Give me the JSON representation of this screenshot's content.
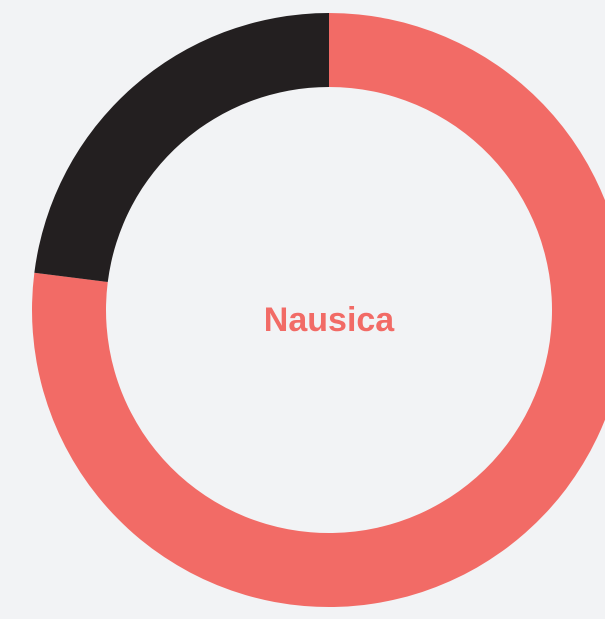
{
  "chart_data": {
    "type": "donut",
    "center_label": "Nausica",
    "values": [
      77,
      23
    ],
    "colors": [
      "#f26b66",
      "#231f20"
    ]
  }
}
